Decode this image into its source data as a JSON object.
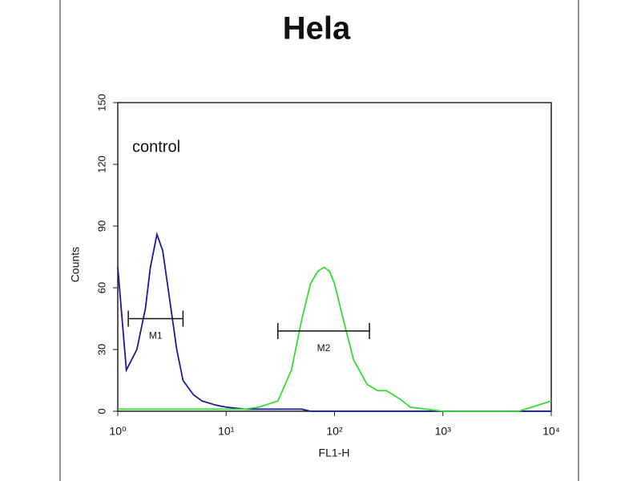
{
  "chart_data": {
    "type": "histogram-line",
    "title": "Hela",
    "annotation": "control",
    "x_label": "FL1-H",
    "y_label": "Counts",
    "log_x": true,
    "xlim": [
      1,
      10000
    ],
    "xticks": [
      {
        "value": 1,
        "label": "10⁰"
      },
      {
        "value": 10,
        "label": "10¹"
      },
      {
        "value": 100,
        "label": "10²"
      },
      {
        "value": 1000,
        "label": "10³"
      },
      {
        "value": 10000,
        "label": "10⁴"
      }
    ],
    "ylim": [
      0,
      150
    ],
    "yticks": [
      0,
      30,
      60,
      90,
      120,
      150
    ],
    "x": [
      1,
      1.2,
      1.5,
      1.8,
      2,
      2.3,
      2.6,
      3,
      3.5,
      4,
      5,
      6,
      8,
      10,
      15,
      20,
      30,
      40,
      50,
      60,
      70,
      80,
      90,
      100,
      120,
      150,
      200,
      250,
      300,
      400,
      500,
      700,
      1000,
      2000,
      5000,
      10000
    ],
    "series": [
      {
        "name": "control",
        "color": "#1a1a9a",
        "values": [
          70,
          20,
          30,
          50,
          70,
          86,
          78,
          55,
          30,
          15,
          8,
          5,
          3,
          2,
          1,
          1,
          1,
          1,
          1,
          0,
          0,
          0,
          0,
          0,
          0,
          0,
          0,
          0,
          0,
          0,
          0,
          0,
          0,
          0,
          0,
          0
        ]
      },
      {
        "name": "Hela",
        "color": "#33dd33",
        "values": [
          1,
          1,
          1,
          1,
          1,
          1,
          1,
          1,
          1,
          1,
          1,
          1,
          1,
          1,
          1,
          2,
          5,
          20,
          45,
          62,
          68,
          70,
          68,
          62,
          45,
          25,
          13,
          10,
          10,
          6,
          2,
          1,
          0,
          0,
          0,
          5
        ]
      }
    ],
    "markers": [
      {
        "label": "M1",
        "range": [
          1.25,
          4
        ],
        "y": 45
      },
      {
        "label": "M2",
        "range": [
          30,
          210
        ],
        "y": 39
      }
    ]
  }
}
